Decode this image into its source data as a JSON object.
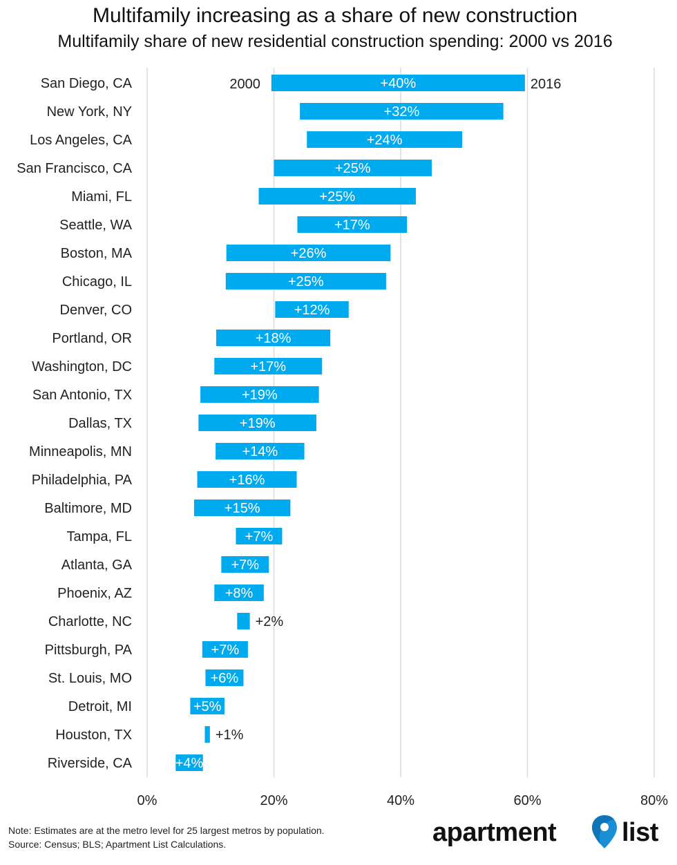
{
  "title": "Multifamily increasing as a share of new construction",
  "subtitle": "Multifamily share of new residential construction spending: 2000 vs 2016",
  "note": "Note: Estimates are at the metro level for 25 largest metros by population.",
  "source": "Source: Census; BLS; Apartment List Calculations.",
  "logo": {
    "left": "apartment",
    "right": "list",
    "icon": "map-pin-icon"
  },
  "colors": {
    "bar": "#00aaee",
    "grid": "#dcdcdc",
    "text": "#222222"
  },
  "chart_data": {
    "type": "bar",
    "orientation": "horizontal",
    "style": "range (2000 to 2016)",
    "xlim": [
      0,
      80
    ],
    "x_ticks": [
      "0%",
      "20%",
      "40%",
      "60%",
      "80%"
    ],
    "grid": true,
    "series_labels": {
      "start": "2000",
      "end": "2016"
    },
    "categories": [
      "San Diego, CA",
      "New York, NY",
      "Los Angeles, CA",
      "San Francisco, CA",
      "Miami, FL",
      "Seattle, WA",
      "Boston, MA",
      "Chicago, IL",
      "Denver, CO",
      "Portland, OR",
      "Washington, DC",
      "San Antonio, TX",
      "Dallas, TX",
      "Minneapolis, MN",
      "Philadelphia, PA",
      "Baltimore, MD",
      "Tampa, FL",
      "Atlanta, GA",
      "Phoenix, AZ",
      "Charlotte, NC",
      "Pittsburgh, PA",
      "St. Louis, MO",
      "Detroit, MI",
      "Houston, TX",
      "Riverside, CA"
    ],
    "start": [
      19.6,
      24.1,
      25.2,
      20.0,
      17.6,
      23.7,
      12.5,
      12.4,
      20.2,
      10.9,
      10.6,
      8.4,
      8.1,
      10.8,
      7.9,
      7.4,
      14.0,
      11.7,
      10.6,
      14.2,
      8.7,
      9.2,
      6.8,
      9.1,
      4.5
    ],
    "end": [
      59.6,
      56.2,
      49.7,
      44.9,
      42.4,
      41.0,
      38.4,
      37.7,
      31.8,
      28.9,
      27.6,
      27.1,
      26.7,
      24.8,
      23.6,
      22.6,
      21.3,
      19.2,
      18.4,
      16.2,
      15.9,
      15.2,
      12.2,
      9.9,
      8.8
    ],
    "labels": [
      "+40%",
      "+32%",
      "+24%",
      "+25%",
      "+25%",
      "+17%",
      "+26%",
      "+25%",
      "+12%",
      "+18%",
      "+17%",
      "+19%",
      "+19%",
      "+14%",
      "+16%",
      "+15%",
      "+7%",
      "+7%",
      "+8%",
      "+2%",
      "+7%",
      "+6%",
      "+5%",
      "+1%",
      "+4%"
    ]
  }
}
